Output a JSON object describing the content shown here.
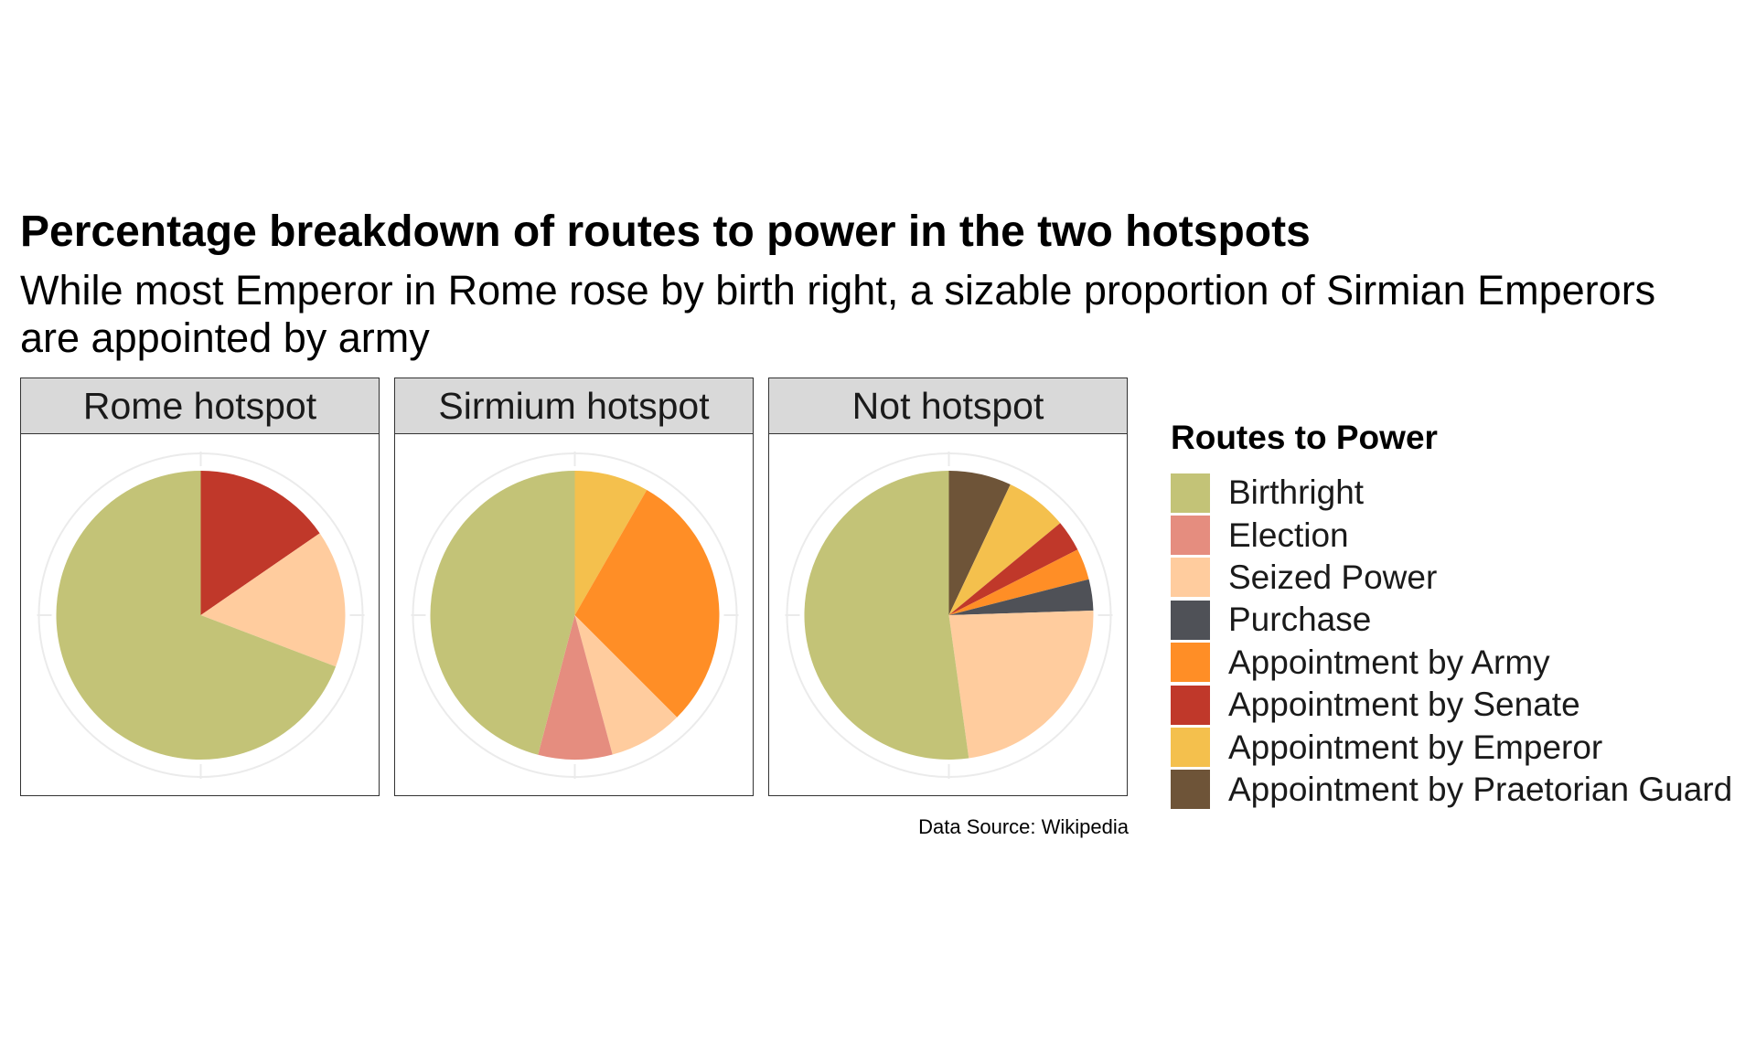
{
  "title": "Percentage breakdown of routes to power in the two hotspots",
  "subtitle_lines": [
    "While most Emperor in Rome rose by birth right, a sizable proportion of Sirmian Emperors",
    "are appointed by army"
  ],
  "caption": "Data Source: Wikipedia",
  "chart_data": {
    "type": "pie",
    "legend_title": "Routes to Power",
    "legend_position": "right",
    "grid": true,
    "categories": [
      {
        "name": "Birthright",
        "color": "#C3C377"
      },
      {
        "name": "Election",
        "color": "#E58D7F"
      },
      {
        "name": "Seized Power",
        "color": "#FFCC9E"
      },
      {
        "name": "Purchase",
        "color": "#4F5157"
      },
      {
        "name": "Appointment by Army",
        "color": "#FF8E26"
      },
      {
        "name": "Appointment by Senate",
        "color": "#C0382A"
      },
      {
        "name": "Appointment by Emperor",
        "color": "#F4C04D"
      },
      {
        "name": "Appointment by Praetorian Guard",
        "color": "#6E5438"
      }
    ],
    "panels": [
      {
        "label": "Rome hotspot",
        "slices": [
          {
            "category": "Appointment by Senate",
            "percent": 15.4
          },
          {
            "category": "Seized Power",
            "percent": 15.4
          },
          {
            "category": "Birthright",
            "percent": 69.2
          }
        ]
      },
      {
        "label": "Sirmium hotspot",
        "slices": [
          {
            "category": "Appointment by Emperor",
            "percent": 8.3
          },
          {
            "category": "Appointment by Army",
            "percent": 29.2
          },
          {
            "category": "Seized Power",
            "percent": 8.3
          },
          {
            "category": "Election",
            "percent": 8.3
          },
          {
            "category": "Birthright",
            "percent": 45.9
          }
        ]
      },
      {
        "label": "Not hotspot",
        "slices": [
          {
            "category": "Appointment by Praetorian Guard",
            "percent": 7.0
          },
          {
            "category": "Appointment by Emperor",
            "percent": 7.0
          },
          {
            "category": "Appointment by Senate",
            "percent": 3.5
          },
          {
            "category": "Appointment by Army",
            "percent": 3.5
          },
          {
            "category": "Purchase",
            "percent": 3.5
          },
          {
            "category": "Seized Power",
            "percent": 23.3
          },
          {
            "category": "Birthright",
            "percent": 52.2
          }
        ]
      }
    ]
  }
}
